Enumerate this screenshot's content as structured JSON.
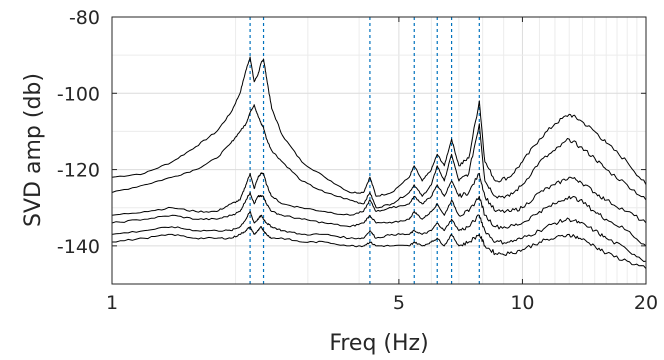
{
  "chart_data": {
    "type": "line",
    "title": "",
    "xlabel": "Freq (Hz)",
    "ylabel": "SVD amp (db)",
    "xscale": "log",
    "xlim": [
      1,
      20
    ],
    "ylim": [
      -150,
      -80
    ],
    "xticks": [
      {
        "value": 1,
        "label": "1"
      },
      {
        "value": 5,
        "label": "5"
      },
      {
        "value": 10,
        "label": "10"
      },
      {
        "value": 20,
        "label": "20"
      }
    ],
    "yticks": [
      {
        "value": -80,
        "label": "-80"
      },
      {
        "value": -100,
        "label": "-100"
      },
      {
        "value": -120,
        "label": "-120"
      },
      {
        "value": -140,
        "label": "-140"
      }
    ],
    "grid": true,
    "line_color": "#000000",
    "marker_color": "#0072BD",
    "peak_markers_hz": [
      2.17,
      2.34,
      4.25,
      5.45,
      6.2,
      6.72,
      7.85
    ],
    "series": [
      {
        "x": [
          1,
          1.2,
          1.4,
          1.6,
          1.8,
          1.95,
          2.05,
          2.12,
          2.17,
          2.22,
          2.27,
          2.31,
          2.34,
          2.38,
          2.45,
          2.6,
          2.9,
          3.3,
          3.8,
          4.1,
          4.25,
          4.4,
          4.8,
          5.3,
          5.45,
          5.7,
          6.0,
          6.2,
          6.45,
          6.72,
          7.0,
          7.4,
          7.85,
          8.1,
          8.6,
          9.3,
          10,
          11,
          12,
          13,
          13.8,
          15,
          16,
          18,
          20
        ],
        "y": [
          -122,
          -121,
          -118,
          -114,
          -110,
          -105,
          -100,
          -94,
          -90.5,
          -97,
          -95,
          -92,
          -91,
          -96,
          -104,
          -111,
          -118,
          -122,
          -126,
          -126,
          -122,
          -127,
          -126,
          -122,
          -119,
          -123,
          -120,
          -116,
          -119,
          -112,
          -119,
          -117,
          -102,
          -118,
          -123,
          -122,
          -118,
          -112,
          -108,
          -105.5,
          -107,
          -110,
          -113,
          -118,
          -124
        ]
      },
      {
        "x": [
          1,
          1.2,
          1.4,
          1.6,
          1.8,
          1.95,
          2.05,
          2.12,
          2.17,
          2.22,
          2.27,
          2.31,
          2.34,
          2.38,
          2.45,
          2.6,
          2.9,
          3.3,
          3.8,
          4.1,
          4.25,
          4.4,
          4.8,
          5.3,
          5.45,
          5.7,
          6.0,
          6.2,
          6.45,
          6.72,
          7.0,
          7.4,
          7.85,
          8.1,
          8.6,
          9.3,
          10,
          11,
          12,
          13,
          13.8,
          15,
          16,
          18,
          20
        ],
        "y": [
          -126,
          -124,
          -122,
          -120,
          -117,
          -113,
          -110,
          -108,
          -105,
          -103,
          -106,
          -108,
          -109,
          -112,
          -115,
          -118,
          -123,
          -126,
          -128,
          -129,
          -126,
          -130,
          -129,
          -126,
          -124,
          -127,
          -124,
          -119,
          -123,
          -116,
          -123,
          -121,
          -108,
          -123,
          -127,
          -127,
          -124,
          -118,
          -115,
          -112,
          -114,
          -117,
          -120,
          -124,
          -128
        ]
      },
      {
        "x": [
          1,
          1.2,
          1.4,
          1.6,
          1.8,
          1.95,
          2.05,
          2.12,
          2.17,
          2.22,
          2.27,
          2.31,
          2.34,
          2.38,
          2.45,
          2.6,
          2.9,
          3.3,
          3.8,
          4.1,
          4.25,
          4.4,
          4.8,
          5.3,
          5.45,
          5.7,
          6.0,
          6.2,
          6.45,
          6.72,
          7.0,
          7.4,
          7.85,
          8.1,
          8.6,
          9.3,
          10,
          11,
          12,
          13,
          13.8,
          15,
          16,
          18,
          20
        ],
        "y": [
          -132,
          -131,
          -130,
          -131,
          -131,
          -129,
          -128,
          -124,
          -121,
          -125,
          -122,
          -121,
          -121,
          -124,
          -127,
          -129,
          -130,
          -131,
          -132,
          -131,
          -128,
          -131,
          -130,
          -129,
          -127,
          -129,
          -127,
          -124,
          -127,
          -123,
          -127,
          -126,
          -121,
          -127,
          -131,
          -131,
          -130,
          -126,
          -124,
          -122,
          -123,
          -126,
          -128,
          -131,
          -134
        ]
      },
      {
        "x": [
          1,
          1.2,
          1.4,
          1.6,
          1.8,
          1.95,
          2.05,
          2.12,
          2.17,
          2.22,
          2.27,
          2.31,
          2.34,
          2.38,
          2.45,
          2.6,
          2.9,
          3.3,
          3.8,
          4.1,
          4.25,
          4.4,
          4.8,
          5.3,
          5.45,
          5.7,
          6.0,
          6.2,
          6.45,
          6.72,
          7.0,
          7.4,
          7.85,
          8.1,
          8.6,
          9.3,
          10,
          11,
          12,
          13,
          13.8,
          15,
          16,
          18,
          20
        ],
        "y": [
          -134,
          -133,
          -132,
          -133,
          -133,
          -132,
          -131,
          -128,
          -126,
          -129,
          -127,
          -127,
          -127,
          -129,
          -131,
          -132,
          -133,
          -134,
          -135,
          -134,
          -132,
          -134,
          -134,
          -133,
          -131,
          -133,
          -131,
          -129,
          -132,
          -128,
          -132,
          -131,
          -127,
          -132,
          -135,
          -135,
          -134,
          -131,
          -129,
          -127,
          -128,
          -131,
          -133,
          -136,
          -140
        ]
      },
      {
        "x": [
          1,
          1.2,
          1.4,
          1.6,
          1.8,
          1.95,
          2.05,
          2.12,
          2.17,
          2.22,
          2.27,
          2.31,
          2.34,
          2.38,
          2.45,
          2.6,
          2.9,
          3.3,
          3.8,
          4.1,
          4.25,
          4.4,
          4.8,
          5.3,
          5.45,
          5.7,
          6.0,
          6.2,
          6.45,
          6.72,
          7.0,
          7.4,
          7.85,
          8.1,
          8.6,
          9.3,
          10,
          11,
          12,
          13,
          13.8,
          15,
          16,
          18,
          20
        ],
        "y": [
          -137,
          -136,
          -135,
          -136,
          -136,
          -136,
          -135,
          -133,
          -131,
          -134,
          -133,
          -132,
          -133,
          -134,
          -135,
          -136,
          -137,
          -137,
          -138,
          -138,
          -136,
          -138,
          -137,
          -137,
          -136,
          -137,
          -136,
          -134,
          -136,
          -133,
          -136,
          -135,
          -132,
          -136,
          -139,
          -139,
          -138,
          -136,
          -134,
          -133,
          -134,
          -136,
          -138,
          -141,
          -144
        ]
      },
      {
        "x": [
          1,
          1.2,
          1.4,
          1.6,
          1.8,
          1.95,
          2.05,
          2.12,
          2.17,
          2.22,
          2.27,
          2.31,
          2.34,
          2.38,
          2.45,
          2.6,
          2.9,
          3.3,
          3.8,
          4.1,
          4.25,
          4.4,
          4.8,
          5.3,
          5.45,
          5.7,
          6.0,
          6.2,
          6.45,
          6.72,
          7.0,
          7.4,
          7.85,
          8.1,
          8.6,
          9.3,
          10,
          11,
          12,
          13,
          13.8,
          15,
          16,
          18,
          20
        ],
        "y": [
          -139,
          -138,
          -137,
          -138,
          -138,
          -138,
          -137,
          -136,
          -135,
          -137,
          -136,
          -135,
          -136,
          -137,
          -138,
          -138,
          -139,
          -139,
          -140,
          -140,
          -139,
          -140,
          -140,
          -140,
          -139,
          -140,
          -139,
          -138,
          -140,
          -137,
          -140,
          -139,
          -137,
          -140,
          -142,
          -142,
          -141,
          -139,
          -138,
          -137,
          -138,
          -140,
          -142,
          -144,
          -146
        ]
      }
    ]
  }
}
